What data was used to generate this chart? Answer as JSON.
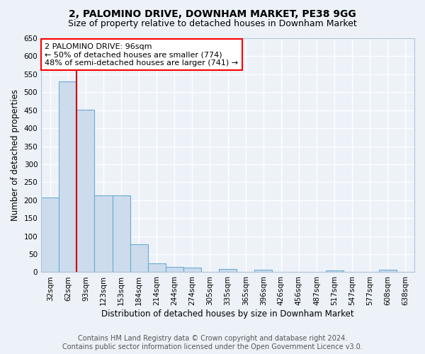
{
  "title": "2, PALOMINO DRIVE, DOWNHAM MARKET, PE38 9GG",
  "subtitle": "Size of property relative to detached houses in Downham Market",
  "xlabel": "Distribution of detached houses by size in Downham Market",
  "ylabel": "Number of detached properties",
  "footer_line1": "Contains HM Land Registry data © Crown copyright and database right 2024.",
  "footer_line2": "Contains public sector information licensed under the Open Government Licence v3.0.",
  "categories": [
    "32sqm",
    "62sqm",
    "93sqm",
    "123sqm",
    "153sqm",
    "184sqm",
    "214sqm",
    "244sqm",
    "274sqm",
    "305sqm",
    "335sqm",
    "365sqm",
    "396sqm",
    "426sqm",
    "456sqm",
    "487sqm",
    "517sqm",
    "547sqm",
    "577sqm",
    "608sqm",
    "638sqm"
  ],
  "values": [
    207,
    530,
    452,
    213,
    213,
    77,
    25,
    15,
    12,
    0,
    8,
    0,
    7,
    0,
    0,
    0,
    5,
    0,
    0,
    7,
    0
  ],
  "bar_color": "#ccdcec",
  "bar_edge_color": "#6aaad4",
  "red_line_index": 2,
  "annotation_text": "2 PALOMINO DRIVE: 96sqm\n← 50% of detached houses are smaller (774)\n48% of semi-detached houses are larger (741) →",
  "annotation_box_color": "white",
  "annotation_box_edge_color": "red",
  "red_line_color": "#cc0000",
  "ylim": [
    0,
    650
  ],
  "yticks": [
    0,
    50,
    100,
    150,
    200,
    250,
    300,
    350,
    400,
    450,
    500,
    550,
    600,
    650
  ],
  "background_color": "#edf2f8",
  "grid_color": "white",
  "title_fontsize": 10,
  "subtitle_fontsize": 9,
  "axis_label_fontsize": 8.5,
  "tick_fontsize": 7.5,
  "annotation_fontsize": 8,
  "footer_fontsize": 7
}
